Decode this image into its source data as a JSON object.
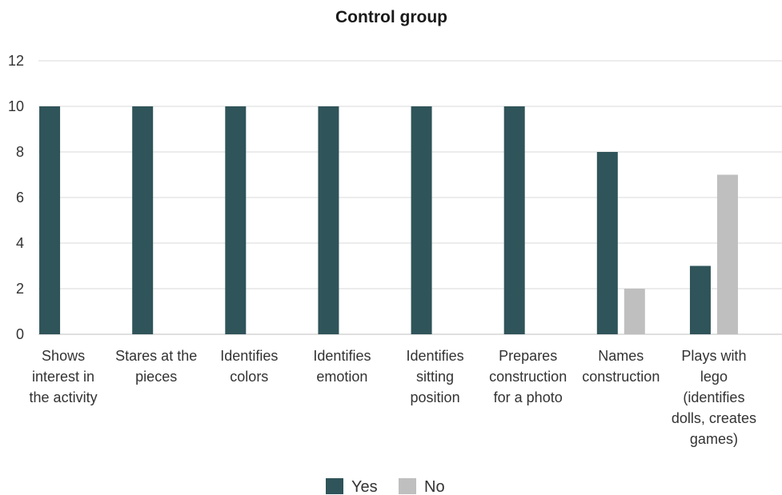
{
  "chart_data": {
    "type": "bar",
    "title": "Control group",
    "xlabel": "",
    "ylabel": "",
    "ylim": [
      0,
      12
    ],
    "yticks": [
      0,
      2,
      4,
      6,
      8,
      10,
      12
    ],
    "grid": true,
    "legend_position": "bottom",
    "categories": [
      [
        "Shows",
        "interest in",
        "the activity"
      ],
      [
        "Stares at the",
        "pieces"
      ],
      [
        "Identifies",
        "colors"
      ],
      [
        "Identifies",
        "emotion"
      ],
      [
        "Identifies",
        "sitting",
        "position"
      ],
      [
        "Prepares",
        "construction",
        "for a photo"
      ],
      [
        "Names",
        "construction"
      ],
      [
        "Plays with",
        "lego",
        "(identifies",
        "dolls, creates",
        "games)"
      ]
    ],
    "series": [
      {
        "name": "Yes",
        "color": "#2f5459",
        "values": [
          10,
          10,
          10,
          10,
          10,
          10,
          8,
          3
        ]
      },
      {
        "name": "No",
        "color": "#bfbfbf",
        "values": [
          0,
          0,
          0,
          0,
          0,
          0,
          2,
          7
        ]
      }
    ]
  }
}
